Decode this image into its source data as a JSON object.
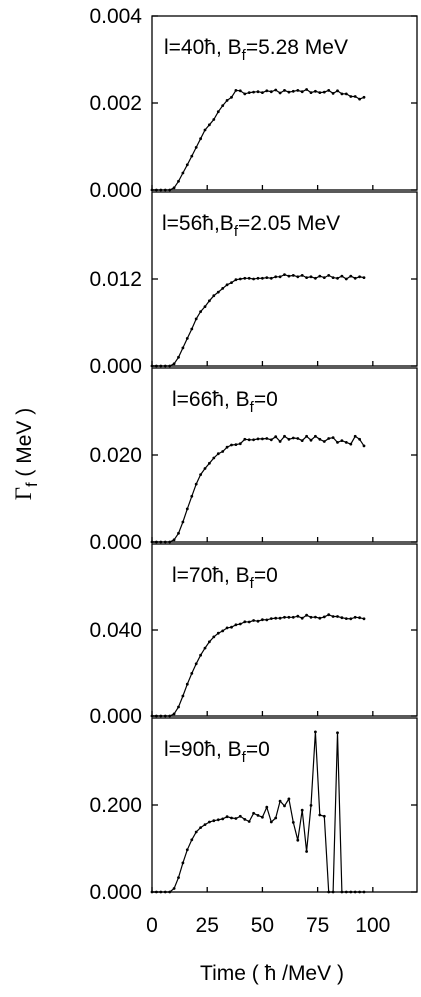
{
  "chart_data": {
    "type": "line",
    "xlabel": "Time ( ħ /MeV )",
    "ylabel": "Γ_f ( MeV )",
    "ylabel_main": "Γ",
    "ylabel_sub": "f",
    "ylabel_rest": " ( MeV )",
    "x_ticks": [
      "0",
      "25",
      "50",
      "75",
      "100"
    ],
    "xlim": [
      0,
      120
    ],
    "panels": [
      {
        "label_main": "l=40ħ, B",
        "label_sub": "f",
        "label_rest": "=5.28 MeV",
        "ylim": [
          0,
          0.004
        ],
        "y_ticks": [
          "0.000",
          "0.002",
          "0.004"
        ],
        "x": [
          0,
          2,
          4,
          6,
          8,
          10,
          12,
          14,
          16,
          18,
          20,
          22,
          24,
          26,
          28,
          30,
          32,
          34,
          36,
          38,
          40,
          42,
          44,
          46,
          48,
          50,
          52,
          54,
          56,
          58,
          60,
          62,
          64,
          66,
          68,
          70,
          72,
          74,
          76,
          78,
          80,
          82,
          84,
          86,
          88,
          90,
          92,
          94,
          96
        ],
        "y": [
          0,
          0,
          0,
          0,
          0,
          5e-05,
          0.0002,
          0.00039,
          0.00058,
          0.00078,
          0.00098,
          0.00118,
          0.00138,
          0.0015,
          0.00162,
          0.0018,
          0.00194,
          0.00206,
          0.00213,
          0.00229,
          0.00228,
          0.00221,
          0.00224,
          0.00225,
          0.00226,
          0.00224,
          0.00228,
          0.00226,
          0.0023,
          0.00223,
          0.00229,
          0.00225,
          0.00227,
          0.00229,
          0.00226,
          0.00231,
          0.00224,
          0.00227,
          0.00224,
          0.00225,
          0.00229,
          0.00222,
          0.00228,
          0.00221,
          0.00221,
          0.00215,
          0.00215,
          0.00209,
          0.00213
        ]
      },
      {
        "label_main": "l=56ħ,B",
        "label_sub": "f",
        "label_rest": "=2.05 MeV",
        "ylim": [
          0,
          0.024
        ],
        "y_ticks": [
          "0.000",
          "0.012"
        ],
        "x": [
          0,
          2,
          4,
          6,
          8,
          10,
          12,
          14,
          16,
          18,
          20,
          22,
          24,
          26,
          28,
          30,
          32,
          34,
          36,
          38,
          40,
          42,
          44,
          46,
          48,
          50,
          52,
          54,
          56,
          58,
          60,
          62,
          64,
          66,
          68,
          70,
          72,
          74,
          76,
          78,
          80,
          82,
          84,
          86,
          88,
          90,
          92,
          94,
          96
        ],
        "y": [
          0,
          0,
          0,
          0,
          0,
          0.0003,
          0.0012,
          0.0025,
          0.0038,
          0.0051,
          0.0065,
          0.0075,
          0.0082,
          0.009,
          0.0097,
          0.0102,
          0.0107,
          0.0112,
          0.0115,
          0.0119,
          0.012,
          0.0121,
          0.0121,
          0.012,
          0.0121,
          0.0121,
          0.0122,
          0.0121,
          0.0123,
          0.0123,
          0.0126,
          0.0124,
          0.0125,
          0.0123,
          0.0125,
          0.0122,
          0.0123,
          0.0121,
          0.0124,
          0.0122,
          0.0125,
          0.0122,
          0.0121,
          0.0124,
          0.012,
          0.0124,
          0.0121,
          0.0123,
          0.0122
        ]
      },
      {
        "label_main": "l=66ħ, B",
        "label_sub": "f",
        "label_rest": "=0",
        "ylim": [
          0,
          0.04
        ],
        "y_ticks": [
          "0.000",
          "0.020"
        ],
        "x": [
          0,
          2,
          4,
          6,
          8,
          10,
          12,
          14,
          16,
          18,
          20,
          22,
          24,
          26,
          28,
          30,
          32,
          34,
          36,
          38,
          40,
          42,
          44,
          46,
          48,
          50,
          52,
          54,
          56,
          58,
          60,
          62,
          64,
          66,
          68,
          70,
          72,
          74,
          76,
          78,
          80,
          82,
          84,
          86,
          88,
          90,
          92,
          94,
          96
        ],
        "y": [
          0,
          0,
          0,
          0,
          0,
          0.0005,
          0.002,
          0.0046,
          0.0076,
          0.0105,
          0.0133,
          0.0155,
          0.0169,
          0.0181,
          0.0193,
          0.0203,
          0.0208,
          0.0218,
          0.0223,
          0.0224,
          0.0226,
          0.0236,
          0.0235,
          0.0235,
          0.0237,
          0.0237,
          0.0238,
          0.0235,
          0.0242,
          0.0231,
          0.0243,
          0.0236,
          0.0239,
          0.0238,
          0.0233,
          0.0243,
          0.0234,
          0.0243,
          0.0236,
          0.0231,
          0.0238,
          0.024,
          0.0229,
          0.0233,
          0.0229,
          0.0225,
          0.0243,
          0.0236,
          0.0221
        ]
      },
      {
        "label_main": "l=70ħ, B",
        "label_sub": "f",
        "label_rest": "=0",
        "ylim": [
          0,
          0.08
        ],
        "y_ticks": [
          "0.000",
          "0.040"
        ],
        "x": [
          0,
          2,
          4,
          6,
          8,
          10,
          12,
          14,
          16,
          18,
          20,
          22,
          24,
          26,
          28,
          30,
          32,
          34,
          36,
          38,
          40,
          42,
          44,
          46,
          48,
          50,
          52,
          54,
          56,
          58,
          60,
          62,
          64,
          66,
          68,
          70,
          72,
          74,
          76,
          78,
          80,
          82,
          84,
          86,
          88,
          90,
          92,
          94,
          96
        ],
        "y": [
          0,
          0,
          0,
          0,
          0,
          0.001,
          0.0042,
          0.0093,
          0.0148,
          0.0198,
          0.0243,
          0.0283,
          0.0316,
          0.0345,
          0.0368,
          0.0385,
          0.0396,
          0.041,
          0.0413,
          0.0424,
          0.0428,
          0.0438,
          0.0437,
          0.0444,
          0.0441,
          0.0448,
          0.0447,
          0.0453,
          0.0455,
          0.0455,
          0.0459,
          0.0459,
          0.0459,
          0.0464,
          0.0455,
          0.0469,
          0.0459,
          0.046,
          0.0455,
          0.0461,
          0.0471,
          0.0463,
          0.0463,
          0.0457,
          0.0453,
          0.0452,
          0.0459,
          0.0457,
          0.0452
        ]
      },
      {
        "label_main": "l=90ħ, B",
        "label_sub": "f",
        "label_rest": "=0",
        "ylim": [
          0,
          0.4
        ],
        "y_ticks": [
          "0.000",
          "0.200"
        ],
        "x": [
          0,
          2,
          4,
          6,
          8,
          10,
          12,
          14,
          16,
          18,
          20,
          22,
          24,
          26,
          28,
          30,
          32,
          34,
          36,
          38,
          40,
          42,
          44,
          46,
          48,
          50,
          52,
          54,
          56,
          58,
          60,
          62,
          64,
          66,
          68,
          70,
          72,
          74,
          76,
          78,
          80,
          82,
          84,
          86,
          88,
          90,
          92,
          94,
          96
        ],
        "y": [
          0,
          0,
          0,
          0,
          0,
          0.008,
          0.033,
          0.067,
          0.097,
          0.12,
          0.138,
          0.148,
          0.155,
          0.161,
          0.164,
          0.166,
          0.168,
          0.173,
          0.17,
          0.169,
          0.174,
          0.167,
          0.162,
          0.181,
          0.176,
          0.172,
          0.195,
          0.161,
          0.17,
          0.209,
          0.198,
          0.214,
          0.16,
          0.119,
          0.188,
          0.093,
          0.199,
          0.368,
          0.177,
          0.174,
          0.0,
          0.0,
          0.366,
          0.0,
          0.0,
          0.0,
          0.0,
          0.0,
          0.0
        ]
      }
    ]
  }
}
